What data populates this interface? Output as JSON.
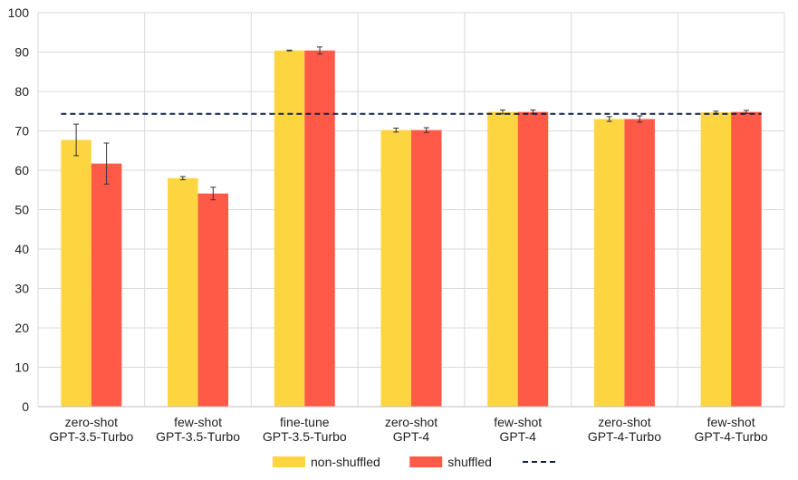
{
  "chart_data": {
    "type": "bar",
    "title": "",
    "xlabel": "",
    "ylabel": "",
    "ylim": [
      0,
      100
    ],
    "yticks": [
      "0",
      "10",
      "20",
      "30",
      "40",
      "50",
      "60",
      "70",
      "80",
      "90",
      "100"
    ],
    "grid": true,
    "categories": [
      [
        "zero-shot",
        "GPT-3.5-Turbo"
      ],
      [
        "few-shot",
        "GPT-3.5-Turbo"
      ],
      [
        "fine-tune",
        "GPT-3.5-Turbo"
      ],
      [
        "zero-shot",
        "GPT-4"
      ],
      [
        "few-shot",
        "GPT-4"
      ],
      [
        "zero-shot",
        "GPT-4-Turbo"
      ],
      [
        "few-shot",
        "GPT-4-Turbo"
      ]
    ],
    "series": [
      {
        "name": "non-shuffled",
        "color": "#FDD540",
        "values": [
          67.7,
          58.0,
          90.4,
          70.2,
          74.8,
          73.0,
          74.7
        ],
        "errors": [
          4.0,
          0.4,
          0.1,
          0.5,
          0.5,
          0.6,
          0.3
        ]
      },
      {
        "name": "shuffled",
        "color": "#FF5A47",
        "values": [
          61.7,
          54.1,
          90.4,
          70.2,
          74.8,
          73.0,
          74.8
        ],
        "errors": [
          5.2,
          1.6,
          0.9,
          0.6,
          0.5,
          0.8,
          0.4
        ]
      }
    ],
    "reference_line": {
      "value": 74.3,
      "color": "#0D1F45",
      "style": "dashed",
      "label": ""
    },
    "legend": {
      "position": "bottom"
    }
  }
}
